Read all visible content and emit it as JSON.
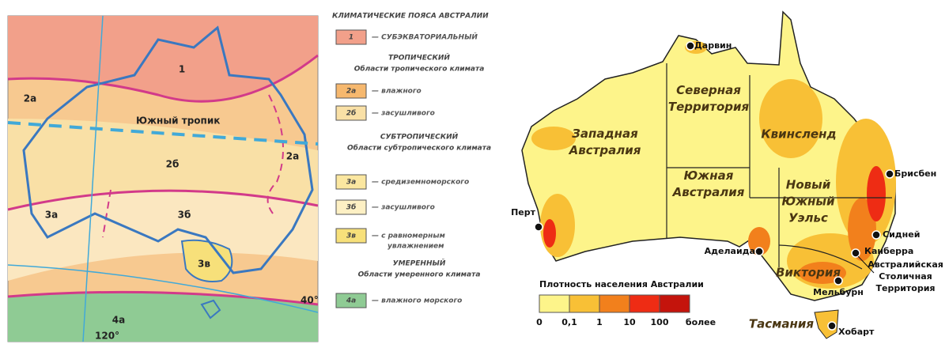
{
  "climate_map": {
    "zone_labels": [
      "1",
      "2а",
      "2а",
      "2б",
      "3а",
      "3б",
      "3в",
      "4а"
    ],
    "tropic_label": "Южный тропик",
    "latitude_label": "40°",
    "longitude_label": "120°",
    "legend": {
      "title": "КЛИМАТИЧЕСКИЕ ПОЯСА АВСТРАЛИИ",
      "entries": [
        {
          "code": "1",
          "lines": [
            "— СУБЭКВАТОРИАЛЬНЫЙ"
          ],
          "color": "#f2a08a"
        },
        {
          "heading": "ТРОПИЧЕСКИЙ",
          "subheading": "Области тропического климата"
        },
        {
          "code": "2а",
          "lines": [
            "— влажного"
          ],
          "color": "#f6b86e"
        },
        {
          "code": "2б",
          "lines": [
            "— засушливого"
          ],
          "color": "#f9e0a6"
        },
        {
          "heading": "СУБТРОПИЧЕСКИЙ",
          "subheading": "Области субтропического климата"
        },
        {
          "code": "3а",
          "lines": [
            "— средиземноморского"
          ],
          "color": "#fbe7a0"
        },
        {
          "code": "3б",
          "lines": [
            "— засушливого"
          ],
          "color": "#fdf0c4"
        },
        {
          "code": "3в",
          "lines": [
            "— с равномерным",
            "увлажнением"
          ],
          "color": "#f7e07a"
        },
        {
          "heading": "УМЕРЕННЫЙ",
          "subheading": "Области умеренного климата"
        },
        {
          "code": "4а",
          "lines": [
            "— влажного морского"
          ],
          "color": "#8fcb94"
        }
      ]
    }
  },
  "population_map": {
    "states": [
      {
        "lines": [
          "Западная",
          "Австралия"
        ]
      },
      {
        "lines": [
          "Северная",
          "Территория"
        ]
      },
      {
        "lines": [
          "Квинсленд"
        ]
      },
      {
        "lines": [
          "Южная",
          "Австралия"
        ]
      },
      {
        "lines": [
          "Новый",
          "Южный",
          "Уэльс"
        ]
      },
      {
        "lines": [
          "Виктория"
        ]
      }
    ],
    "tasmania": "Тасмания",
    "cities": [
      "Дарвин",
      "Перт",
      "Аделаида",
      "Мельбурн",
      "Сидней",
      "Брисбен",
      "Хобарт"
    ],
    "capital": "Канберра",
    "capital_territory": [
      "Австралийская",
      "Столичная",
      "Территория"
    ],
    "legend": {
      "title": "Плотность населения Австралии",
      "colors": [
        "#fdf48a",
        "#f8c036",
        "#f2801c",
        "#ee2c14",
        "#c4140c"
      ],
      "labels": [
        "0",
        "0,1",
        "1",
        "10",
        "100",
        "более"
      ]
    }
  }
}
